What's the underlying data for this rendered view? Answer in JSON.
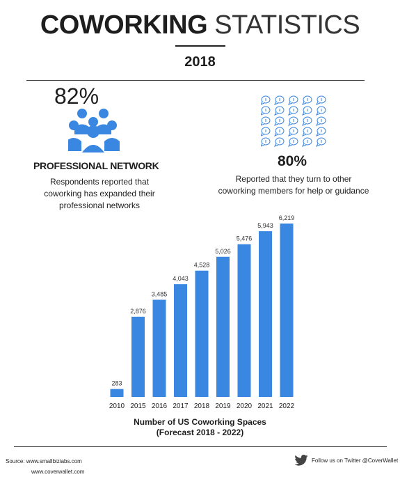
{
  "header": {
    "title_bold": "COWORKING",
    "title_light": "STATISTICS",
    "year": "2018"
  },
  "stat1": {
    "percent": "82%",
    "title": "PROFESSIONAL NETWORK",
    "desc_lines": [
      "Respondents reported that",
      "coworking has expanded their",
      "professional networks"
    ]
  },
  "stat2": {
    "percent": "80%",
    "desc_lines": [
      "Reported that they turn to other",
      "coworking members for help or guidance"
    ]
  },
  "icons": {
    "people": "people-group-icon",
    "chat": "chat-bubble-icon",
    "twitter": "twitter-bird-icon"
  },
  "colors": {
    "accent": "#3a87e1",
    "text": "#1e1e1e",
    "chat_outline": "#3a87e1"
  },
  "chart_data": {
    "type": "bar",
    "categories": [
      "2010",
      "2015",
      "2016",
      "2017",
      "2018",
      "2019",
      "2020",
      "2021",
      "2022"
    ],
    "values": [
      283,
      2876,
      3485,
      4043,
      4528,
      5026,
      5476,
      5943,
      6219
    ],
    "value_labels": [
      "283",
      "2,876",
      "3,485",
      "4,043",
      "4,528",
      "5,026",
      "5,476",
      "5,943",
      "6,219"
    ],
    "title_lines": [
      "Number of US Coworking Spaces",
      "(Forecast 2018 - 2022)"
    ],
    "ylim": [
      0,
      6219
    ],
    "grid": false,
    "color": "#3a87e1"
  },
  "footer": {
    "source_line1": "Source: www.smallbiziabs.com",
    "source_line2": "www.coverwallet.com",
    "follow": "Follow us on Twitter @CoverWallet"
  }
}
